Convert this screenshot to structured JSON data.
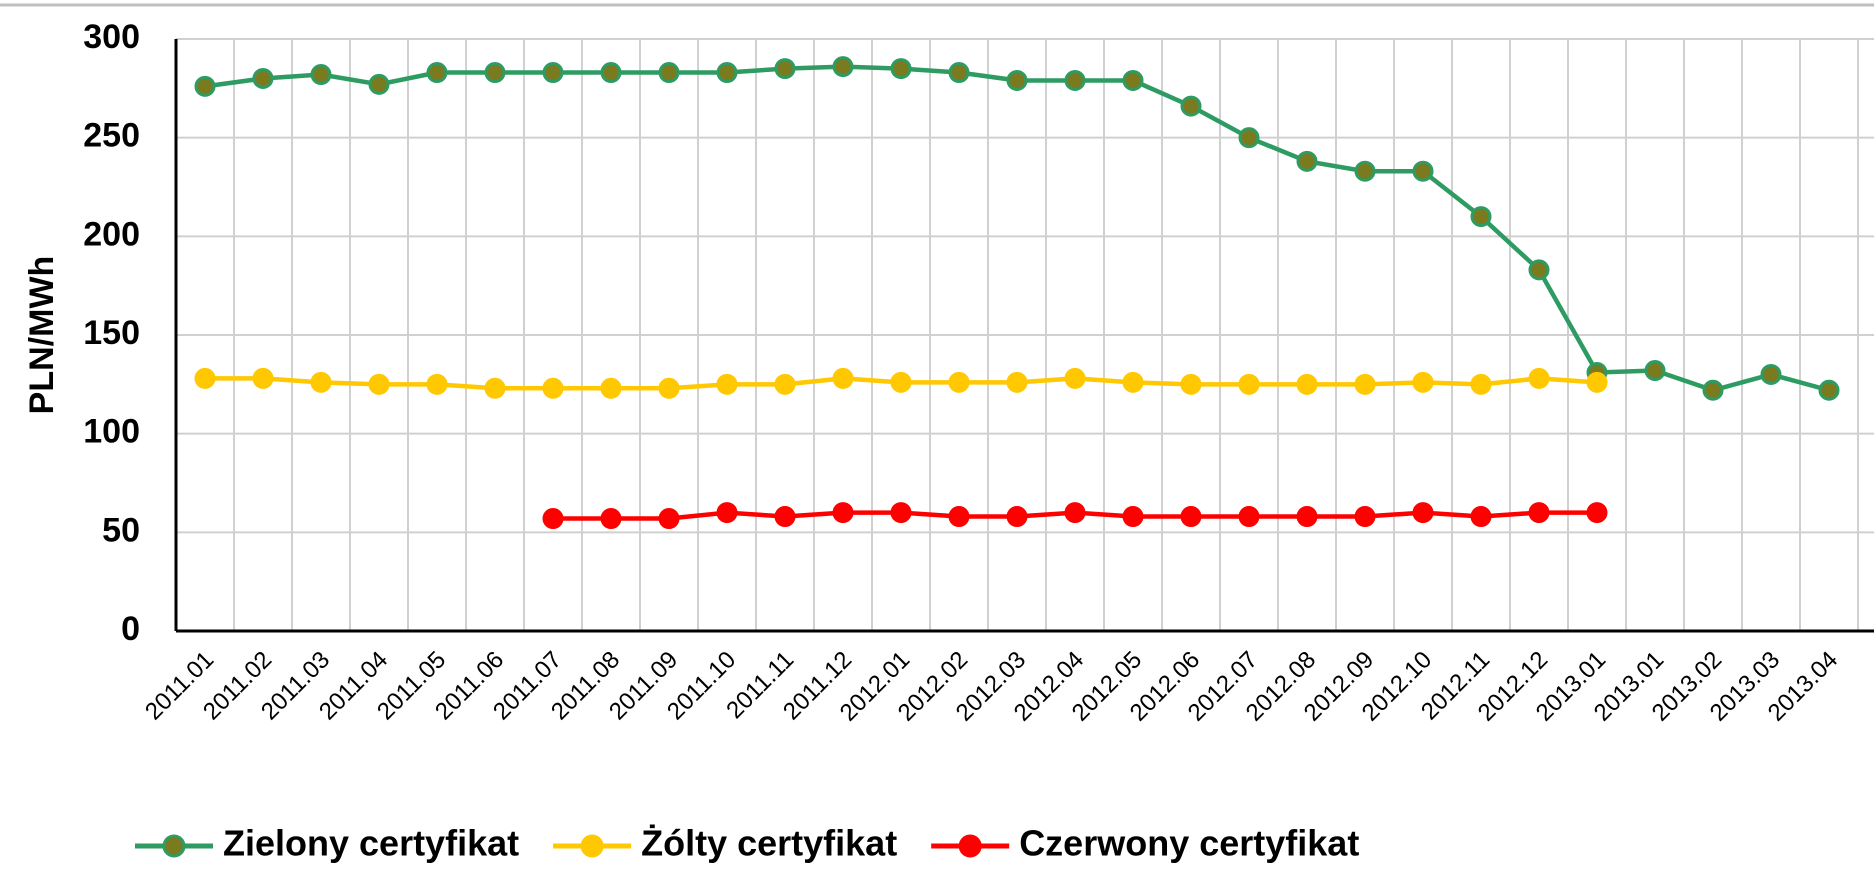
{
  "chart_data": {
    "type": "line",
    "y_label": "PLN/MWh",
    "categories": [
      "2011.01",
      "2011.02",
      "2011.03",
      "2011.04",
      "2011.05",
      "2011.06",
      "2011.07",
      "2011.08",
      "2011.09",
      "2011.10",
      "2011.11",
      "2011.12",
      "2012.01",
      "2012.02",
      "2012.03",
      "2012.04",
      "2012.05",
      "2012.06",
      "2012.07",
      "2012.08",
      "2012.09",
      "2012.10",
      "2012.11",
      "2012.12",
      "2013.01",
      "2013.01",
      "2013.02",
      "2013.03",
      "2013.04"
    ],
    "series": [
      {
        "name": "Zielony certyfikat",
        "color": "#2e9b63",
        "marker_color": "#7a7a1e",
        "values": [
          276,
          280,
          282,
          277,
          283,
          283,
          283,
          283,
          283,
          283,
          285,
          286,
          285,
          283,
          279,
          279,
          279,
          266,
          250,
          238,
          233,
          233,
          210,
          183,
          131,
          132,
          122,
          130,
          122
        ]
      },
      {
        "name": "Żólty certyfikat",
        "color": "#ffc800",
        "marker_color": "#ffc800",
        "values": [
          128,
          128,
          126,
          125,
          125,
          123,
          123,
          123,
          123,
          125,
          125,
          128,
          126,
          126,
          126,
          128,
          126,
          125,
          125,
          125,
          125,
          126,
          125,
          128,
          126,
          null,
          null,
          null,
          null
        ]
      },
      {
        "name": "Czerwony certyfikat",
        "color": "#ff0000",
        "marker_color": "#ff0000",
        "values": [
          null,
          null,
          null,
          null,
          null,
          null,
          57,
          57,
          57,
          60,
          58,
          60,
          60,
          58,
          58,
          60,
          58,
          58,
          58,
          58,
          58,
          60,
          58,
          60,
          60,
          null,
          null,
          null,
          null
        ]
      }
    ],
    "ylim": [
      0,
      300
    ],
    "yticks": [
      0,
      50,
      100,
      150,
      200,
      250,
      300
    ],
    "grid": true
  }
}
